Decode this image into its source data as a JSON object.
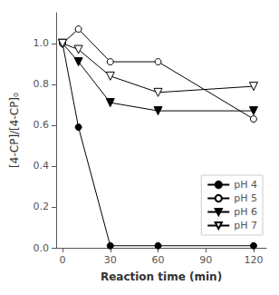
{
  "chart_data": {
    "type": "line",
    "xlabel": "Reaction time (min)",
    "ylabel": "[4-CP]/[4-CP]₀",
    "x": [
      0,
      10,
      30,
      60,
      120
    ],
    "series": [
      {
        "name": "pH 4",
        "color": "black",
        "marker": "filled_circle",
        "values": [
          1.0,
          0.59,
          0.01,
          0.01,
          0.01
        ]
      },
      {
        "name": "pH 5",
        "color": "black",
        "marker": "open_circle",
        "values": [
          1.0,
          1.07,
          0.91,
          0.91,
          0.63
        ]
      },
      {
        "name": "pH 6",
        "color": "black",
        "marker": "filled_triangle_down",
        "values": [
          1.0,
          0.91,
          0.71,
          0.67,
          0.67
        ]
      },
      {
        "name": "pH 7",
        "color": "black",
        "marker": "open_triangle_down",
        "values": [
          1.0,
          0.97,
          0.84,
          0.76,
          0.79
        ]
      }
    ],
    "xlim": [
      -4,
      128
    ],
    "ylim": [
      0.0,
      1.15
    ],
    "xticks": [
      0,
      30,
      60,
      90,
      120
    ],
    "yticks": [
      {
        "value": 0.0,
        "label": "0.0"
      },
      0.2,
      0.4,
      0.6,
      0.8,
      {
        "value": 1.0,
        "label": "1.0"
      }
    ],
    "grid": false,
    "legend": "lower right"
  }
}
